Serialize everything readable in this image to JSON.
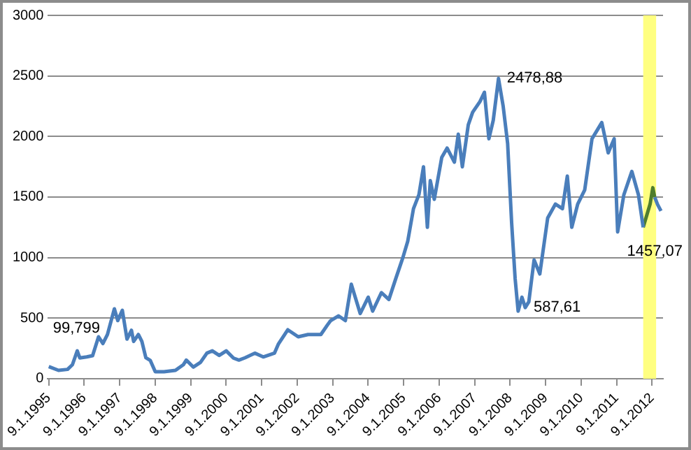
{
  "chart_data": {
    "type": "line",
    "series": [
      {
        "color": "#4a7ebb",
        "x": [
          "1995-01-10",
          "1995-04-20",
          "1995-07-22",
          "1995-09-10",
          "1995-10-30",
          "1995-11-25",
          "1996-02-05",
          "1996-04-05",
          "1996-06-05",
          "1996-07-20",
          "1996-09-05",
          "1996-11-15",
          "1996-12-20",
          "1997-02-05",
          "1997-03-25",
          "1997-05-10",
          "1997-06-01",
          "1997-07-20",
          "1997-08-25",
          "1997-10-05",
          "1997-11-20",
          "1998-01-10",
          "1998-04-10",
          "1998-08-05",
          "1998-10-25",
          "1998-11-25",
          "1999-02-05",
          "1999-04-20",
          "1999-06-25",
          "1999-08-20",
          "1999-10-30",
          "2000-01-10",
          "2000-03-25",
          "2000-05-20",
          "2000-07-22",
          "2000-10-30",
          "2001-01-25",
          "2001-05-20",
          "2001-07-01",
          "2001-10-05",
          "2002-01-20",
          "2002-05-01",
          "2002-09-10",
          "2002-11-15",
          "2002-12-20",
          "2003-03-10",
          "2003-05-20",
          "2003-07-20",
          "2003-10-20",
          "2004-01-10",
          "2004-02-25",
          "2004-05-25",
          "2004-08-10",
          "2004-10-20",
          "2005-01-01",
          "2005-02-20",
          "2005-04-20",
          "2005-06-15",
          "2005-08-01",
          "2005-09-10",
          "2005-10-10",
          "2005-11-20",
          "2006-02-05",
          "2006-04-01",
          "2006-06-15",
          "2006-07-25",
          "2006-09-05",
          "2006-11-05",
          "2006-12-20",
          "2007-03-05",
          "2007-04-20",
          "2007-06-05",
          "2007-07-20",
          "2007-09-12",
          "2007-10-30",
          "2007-12-15",
          "2008-01-25",
          "2008-03-01",
          "2008-04-01",
          "2008-05-10",
          "2008-06-13",
          "2008-07-20",
          "2008-09-12",
          "2008-11-10",
          "2009-01-30",
          "2009-04-20",
          "2009-07-01",
          "2009-08-20",
          "2009-10-05",
          "2009-12-05",
          "2010-02-15",
          "2010-05-01",
          "2010-08-10",
          "2010-10-15",
          "2010-12-15",
          "2011-01-20",
          "2011-03-25",
          "2011-06-15",
          "2011-08-22",
          "2011-10-10"
        ],
        "values": [
          99.799,
          69,
          77,
          115,
          230,
          172,
          180,
          190,
          346,
          290,
          365,
          577,
          480,
          565,
          327,
          400,
          308,
          365,
          308,
          173,
          150,
          58,
          58,
          69,
          115,
          154,
          96,
          135,
          211,
          230,
          192,
          230,
          170,
          154,
          173,
          211,
          180,
          211,
          288,
          404,
          346,
          365,
          365,
          442,
          480,
          519,
          480,
          780,
          538,
          673,
          558,
          711,
          654,
          827,
          1000,
          1135,
          1404,
          1519,
          1750,
          1250,
          1635,
          1481,
          1827,
          1904,
          1788,
          2019,
          1750,
          2096,
          2200,
          2288,
          2365,
          1981,
          2134,
          2478.88,
          2250,
          1942,
          1288,
          827,
          558,
          673,
          587.61,
          635,
          981,
          865,
          1327,
          1442,
          1404,
          1673,
          1250,
          1442,
          1558,
          1981,
          2115,
          1865,
          1981,
          1212,
          1519,
          1712,
          1519,
          1250
        ]
      },
      {
        "color": "#4f7d2d",
        "x": [
          "2011-10-10",
          "2011-12-20",
          "2012-01-17",
          "2012-02-05"
        ],
        "values": [
          1250,
          1442,
          1577,
          1500
        ]
      },
      {
        "color": "#4a7ebb",
        "x": [
          "2012-02-05",
          "2012-03-05",
          "2012-04-10"
        ],
        "values": [
          1500,
          1440,
          1385
        ]
      }
    ],
    "xlim": [
      "1995-01-01",
      "2012-05-01"
    ],
    "xticks": [
      {
        "value": "1995-01-09",
        "label": "9.1.1995"
      },
      {
        "value": "1996-01-09",
        "label": "9.1.1996"
      },
      {
        "value": "1997-01-09",
        "label": "9.1.1997"
      },
      {
        "value": "1998-01-09",
        "label": "9.1.1998"
      },
      {
        "value": "1999-01-09",
        "label": "9.1.1999"
      },
      {
        "value": "2000-01-09",
        "label": "9.1.2000"
      },
      {
        "value": "2001-01-09",
        "label": "9.1.2001"
      },
      {
        "value": "2002-01-09",
        "label": "9.1.2002"
      },
      {
        "value": "2003-01-09",
        "label": "9.1.2003"
      },
      {
        "value": "2004-01-09",
        "label": "9.1.2004"
      },
      {
        "value": "2005-01-09",
        "label": "9.1.2005"
      },
      {
        "value": "2006-01-09",
        "label": "9.1.2006"
      },
      {
        "value": "2007-01-09",
        "label": "9.1.2007"
      },
      {
        "value": "2008-01-09",
        "label": "9.1.2008"
      },
      {
        "value": "2009-01-09",
        "label": "9.1.2009"
      },
      {
        "value": "2010-01-09",
        "label": "9.1.2010"
      },
      {
        "value": "2011-01-09",
        "label": "9.1.2011"
      },
      {
        "value": "2012-01-09",
        "label": "9.1.2012"
      }
    ],
    "ylim": [
      0,
      3000
    ],
    "yticks": [
      0,
      500,
      1000,
      1500,
      2000,
      2500,
      3000
    ],
    "grid": "y",
    "legend": false,
    "marker": "none",
    "line_style": "solid",
    "bands": [
      {
        "axis": "x",
        "from": "2011-10-10",
        "to": "2012-02-20",
        "color": "#ffff80"
      }
    ],
    "annotations": [
      {
        "text": "99,799",
        "x": "1995-01-10",
        "y": 99.799
      },
      {
        "text": "2478,88",
        "x": "2007-09-12",
        "y": 2478.88
      },
      {
        "text": "587,61",
        "x": "2008-06-13",
        "y": 587.61
      },
      {
        "text": "1457,07",
        "x": "2012-01-17",
        "y": 1457.07
      }
    ]
  }
}
